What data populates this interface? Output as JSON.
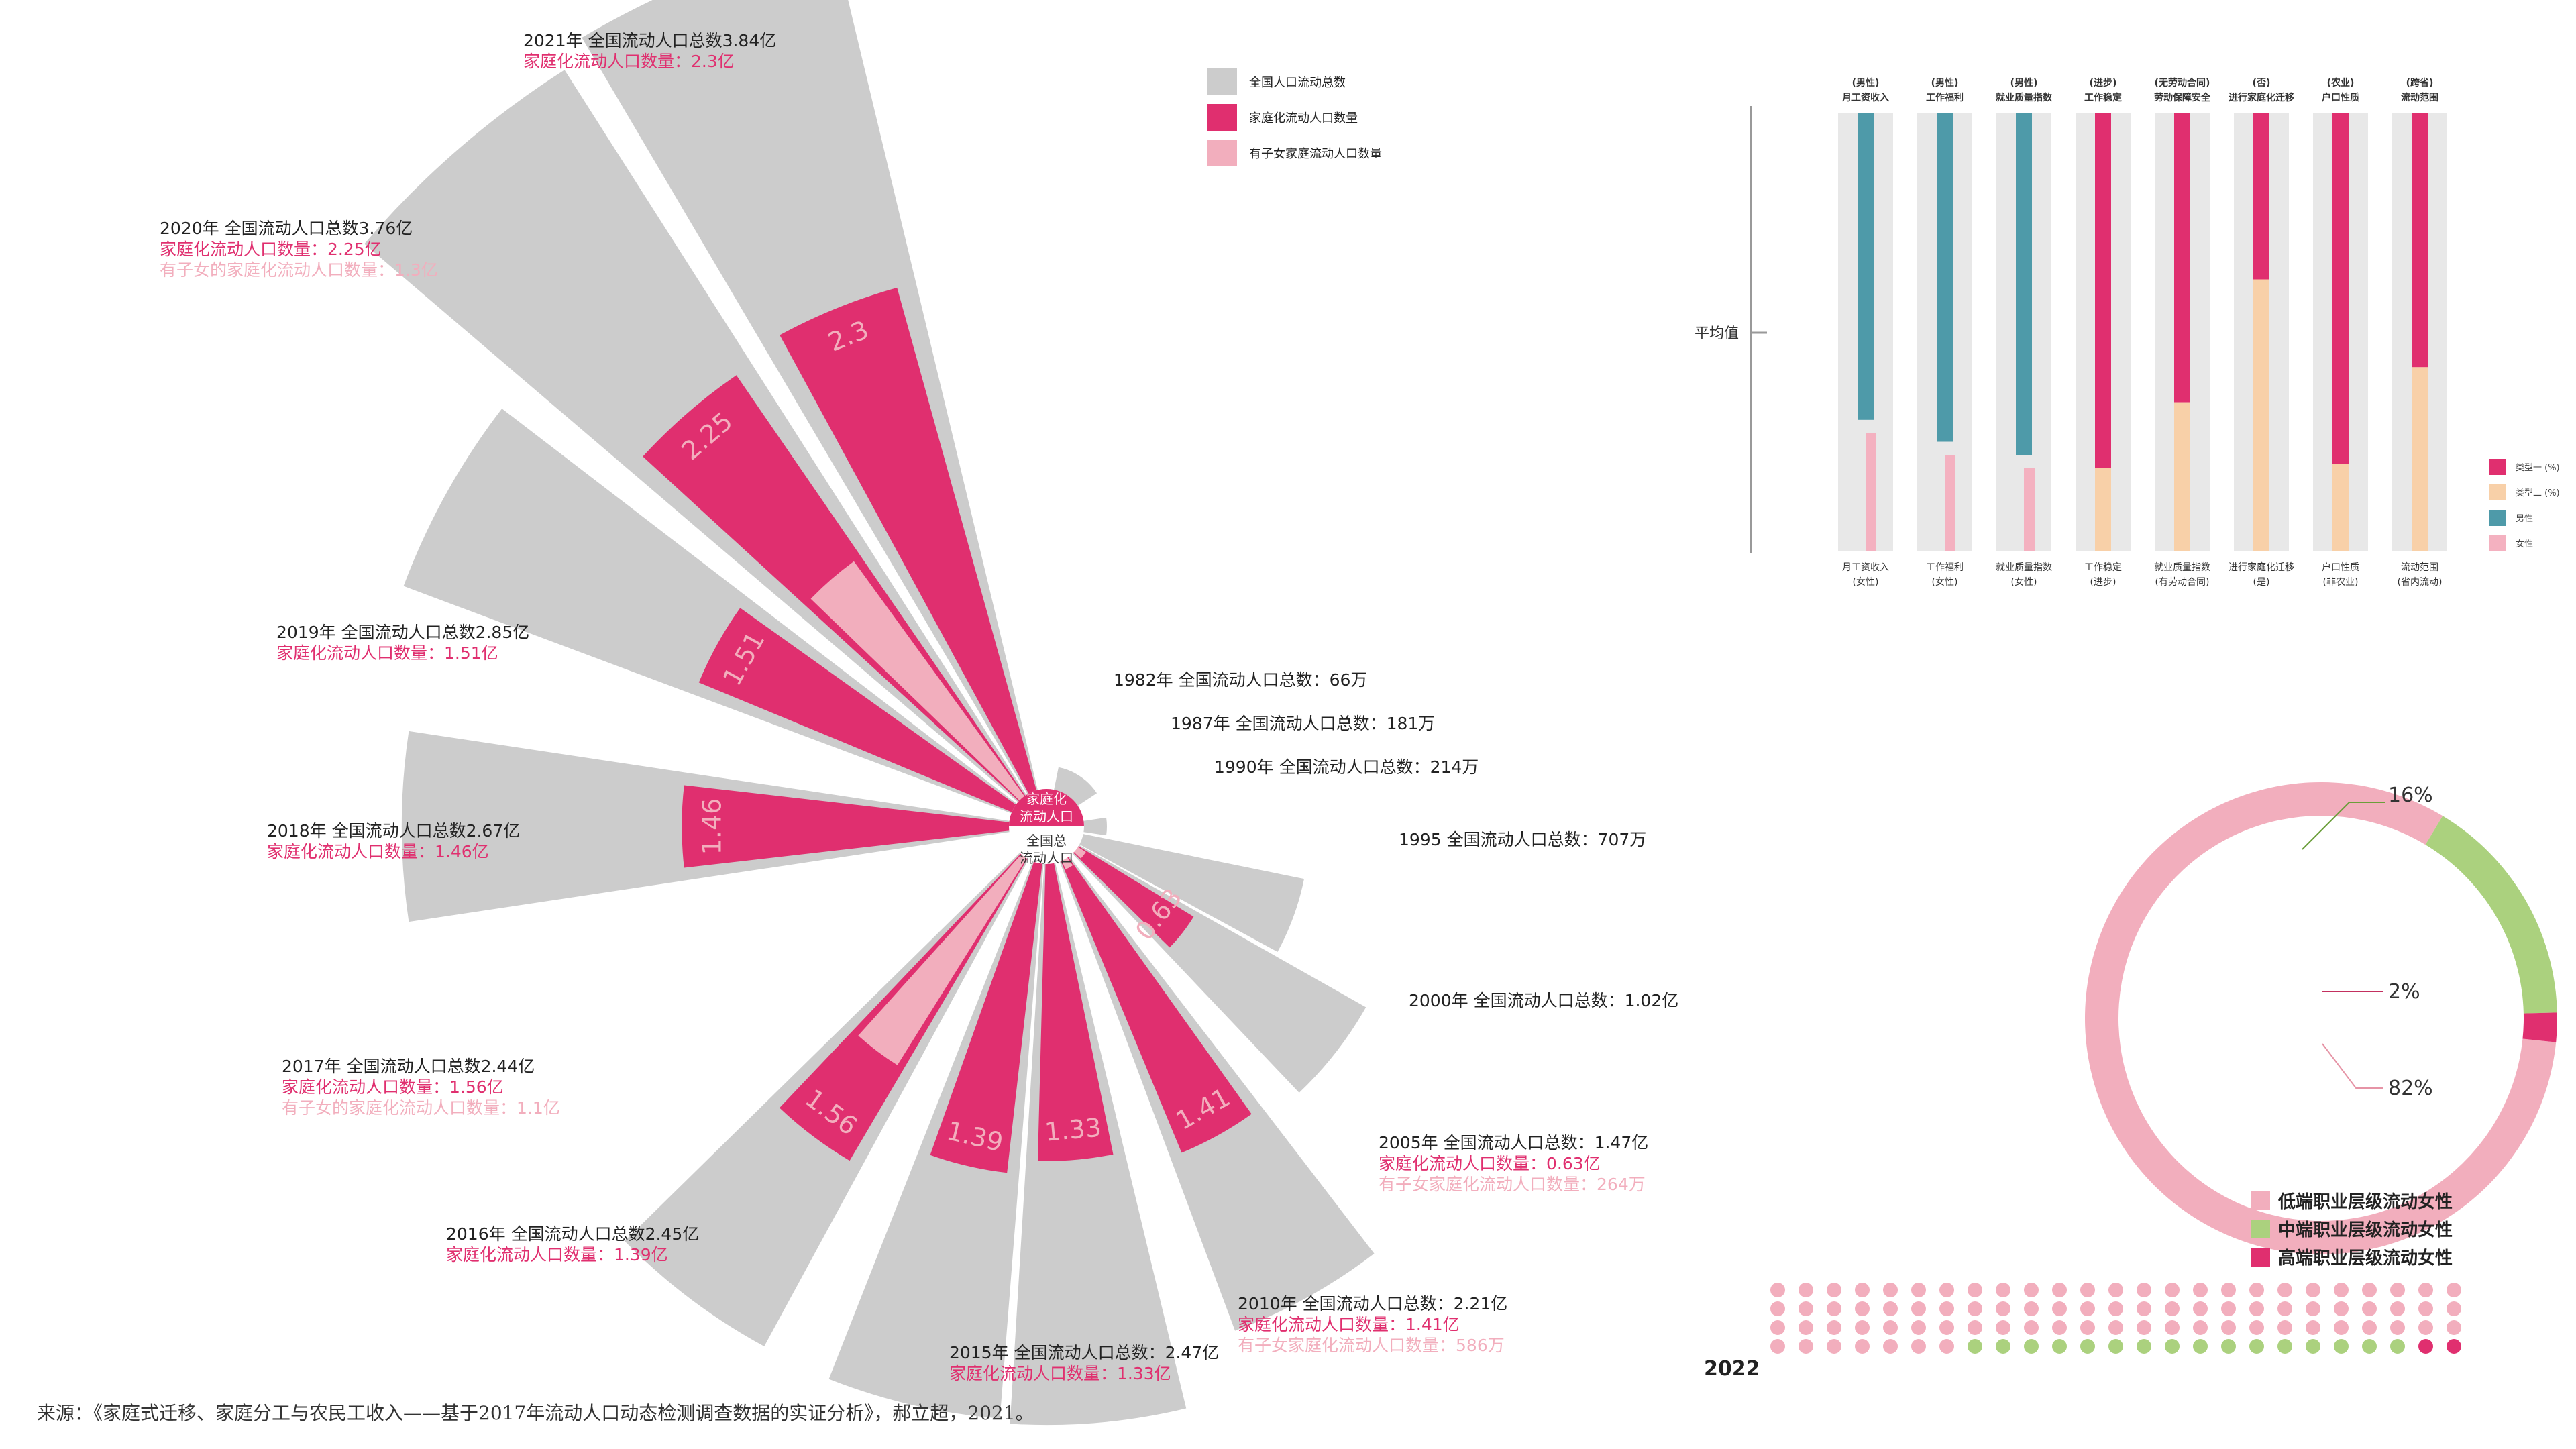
{
  "source_text": "来源：《家庭式迁移、家庭分工与农民工收入——基于2017年流动人口动态检测调查数据的实证分析》，郝立超，2021。",
  "colors": {
    "gray": "#cccccc",
    "magenta": "#e02f6f",
    "pink": "#f2aebd",
    "teal": "#4e9aa9",
    "peach": "#f8d0a8",
    "light_pink": "#f4b1c0",
    "green": "#abd17e",
    "track": "#e8e8e8"
  },
  "chart_data": [
    {
      "type": "radial_bar",
      "center_labels": {
        "inner_top": [
          "家庭化",
          "流动人口"
        ],
        "inner_bottom": [
          "全国总",
          "流动人口"
        ]
      },
      "legend": [
        "全国人口流动总数",
        "家庭化流动人口数量",
        "有子女家庭流动人口数量"
      ],
      "records": [
        {
          "year": 1982,
          "total": 0.0066,
          "family": null,
          "children": null,
          "lines": [
            "1982年 全国流动人口总数：66万"
          ]
        },
        {
          "year": 1987,
          "total": 0.0181,
          "family": null,
          "children": null,
          "lines": [
            "1987年 全国流动人口总数：181万"
          ]
        },
        {
          "year": 1990,
          "total": 0.0214,
          "family": null,
          "children": null,
          "lines": [
            "1990年 全国流动人口总数：214万"
          ]
        },
        {
          "year": 1995,
          "total": 0.0707,
          "family": null,
          "children": null,
          "lines": [
            "1995 全国流动人口总数：707万"
          ]
        },
        {
          "year": 2000,
          "total": 1.02,
          "family": null,
          "children": null,
          "lines": [
            "2000年 全国流动人口总数：1.02亿"
          ]
        },
        {
          "year": 2005,
          "total": 1.47,
          "family": 0.63,
          "children": 0.0264,
          "bar_label": "0.63",
          "lines": [
            "2005年 全国流动人口总数：1.47亿",
            "家庭化流动人口数量：0.63亿",
            "有子女家庭化流动人口数量：264万"
          ]
        },
        {
          "year": 2010,
          "total": 2.21,
          "family": 1.41,
          "children": 0.0586,
          "bar_label": "1.41",
          "lines": [
            "2010年 全国流动人口总数：2.21亿",
            "家庭化流动人口数量：1.41亿",
            "有子女家庭化流动人口数量：586万"
          ]
        },
        {
          "year": 2015,
          "total": 2.47,
          "family": 1.33,
          "children": null,
          "bar_label": "1.33",
          "lines": [
            "2015年 全国流动人口总数：2.47亿",
            "家庭化流动人口数量：1.33亿"
          ]
        },
        {
          "year": 2016,
          "total": 2.45,
          "family": 1.39,
          "children": null,
          "bar_label": "1.39",
          "lines": [
            "2016年 全国流动人口总数2.45亿",
            "家庭化流动人口数量：1.39亿"
          ]
        },
        {
          "year": 2017,
          "total": 2.44,
          "family": 1.56,
          "children": 1.1,
          "bar_label": "1.56",
          "lines": [
            "2017年 全国流动人口总数2.44亿",
            "家庭化流动人口数量：1.56亿",
            "有子女的家庭化流动人口数量：1.1亿"
          ]
        },
        {
          "year": 2018,
          "total": 2.67,
          "family": 1.46,
          "children": null,
          "bar_label": "1.46",
          "lines": [
            "2018年 全国流动人口总数2.67亿",
            "家庭化流动人口数量：1.46亿"
          ]
        },
        {
          "year": 2019,
          "total": 2.85,
          "family": 1.51,
          "children": null,
          "bar_label": "1.51",
          "lines": [
            "2019年 全国流动人口总数2.85亿",
            "家庭化流动人口数量：1.51亿"
          ]
        },
        {
          "year": 2020,
          "total": 3.76,
          "family": 2.25,
          "children": 1.3,
          "bar_label": "2.25",
          "lines": [
            "2020年 全国流动人口总数3.76亿",
            "家庭化流动人口数量：2.25亿",
            "有子女的家庭化流动人口数量：1.3亿"
          ]
        },
        {
          "year": 2021,
          "total": 3.84,
          "family": 2.3,
          "children": null,
          "bar_label": "2.3",
          "lines": [
            "2021年 全国流动人口总数3.84亿",
            "家庭化流动人口数量：2.3亿"
          ]
        }
      ]
    },
    {
      "type": "stacked_bar",
      "avg_label": "平均值",
      "bars": [
        {
          "top": [
            "(男性)",
            "月工资收入"
          ],
          "bottom": [
            "月工资收入",
            "(女性)"
          ],
          "upper": "teal",
          "lower": "light_pink",
          "split": 0.3,
          "gap": 0.03
        },
        {
          "top": [
            "(男性)",
            "工作福利"
          ],
          "bottom": [
            "工作福利",
            "(女性)"
          ],
          "upper": "teal",
          "lower": "light_pink",
          "split": 0.25,
          "gap": 0.03
        },
        {
          "top": [
            "(男性)",
            "就业质量指数"
          ],
          "bottom": [
            "就业质量指数",
            "(女性)"
          ],
          "upper": "teal",
          "lower": "light_pink",
          "split": 0.22,
          "gap": 0.03
        },
        {
          "top": [
            "(进步)",
            "工作稳定"
          ],
          "bottom": [
            "工作稳定",
            "(进步)"
          ],
          "upper": "magenta",
          "lower": "peach",
          "split": 0.19,
          "gap": 0
        },
        {
          "top": [
            "(无劳动合同)",
            "劳动保障安全"
          ],
          "bottom": [
            "就业质量指数",
            "(有劳动合同)"
          ],
          "upper": "magenta",
          "lower": "peach",
          "split": 0.34,
          "gap": 0
        },
        {
          "top": [
            "(否)",
            "进行家庭化迁移"
          ],
          "bottom": [
            "进行家庭化迁移",
            "(是)"
          ],
          "upper": "magenta",
          "lower": "peach",
          "split": 0.62,
          "gap": 0
        },
        {
          "top": [
            "(农业)",
            "户口性质"
          ],
          "bottom": [
            "户口性质",
            "(非农业)"
          ],
          "upper": "magenta",
          "lower": "peach",
          "split": 0.2,
          "gap": 0
        },
        {
          "top": [
            "(跨省)",
            "流动范围"
          ],
          "bottom": [
            "流动范围",
            "(省内流动)"
          ],
          "upper": "magenta",
          "lower": "peach",
          "split": 0.42,
          "gap": 0
        }
      ],
      "legend": [
        {
          "color": "magenta",
          "label": "类型一 (%)"
        },
        {
          "color": "peach",
          "label": "类型二 (%)"
        },
        {
          "color": "teal",
          "label": "男性"
        },
        {
          "color": "light_pink",
          "label": "女性"
        }
      ]
    },
    {
      "type": "pie",
      "year_label": "2022",
      "slices": [
        {
          "label": "低端职业层级流动女性",
          "value": 82,
          "text": "82%",
          "color": "pink"
        },
        {
          "label": "中端职业层级流动女性",
          "value": 16,
          "text": "16%",
          "color": "green"
        },
        {
          "label": "高端职业层级流动女性",
          "value": 2,
          "text": "2%",
          "color": "magenta"
        }
      ]
    }
  ]
}
